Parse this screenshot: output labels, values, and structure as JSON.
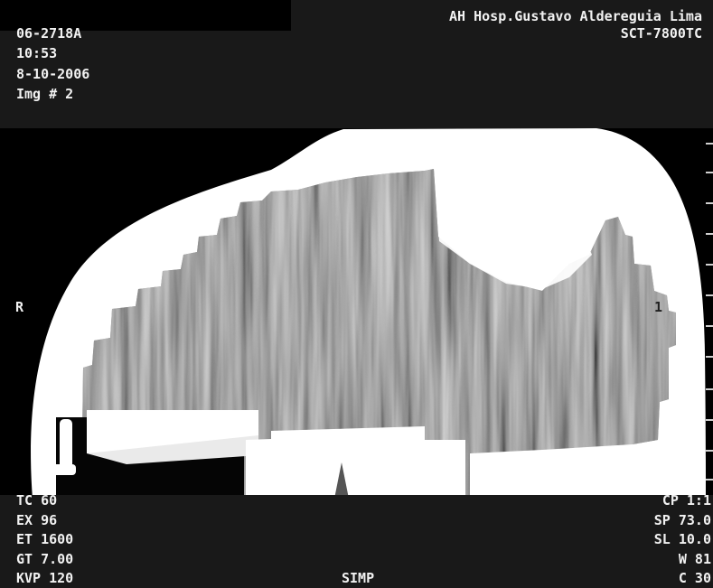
{
  "header": {
    "institution": "AH Hosp.Gustavo Aldereguia Lima",
    "scanner_model": "SCT-7800TC",
    "study_id": "06-2718A",
    "time": "10:53",
    "date": "8-10-2006",
    "image_number": "Img # 2"
  },
  "orientation": {
    "left_marker": "R",
    "right_marker": "1"
  },
  "acquisition_left": [
    "TC 60",
    "EX 96",
    "ET 1600",
    "GT 7.00",
    "KVP 120"
  ],
  "acquisition_center": "SIMP",
  "acquisition_right": [
    "CP 1:1",
    "SP 73.0",
    "SL 10.0",
    "W 81",
    "C 30"
  ],
  "colors": {
    "background": "#000000",
    "panel": "#191919",
    "overlay_text": "#f2f2f2",
    "tissue_bright": "#ffffff",
    "tissue_gray": "#7a7a7a"
  }
}
